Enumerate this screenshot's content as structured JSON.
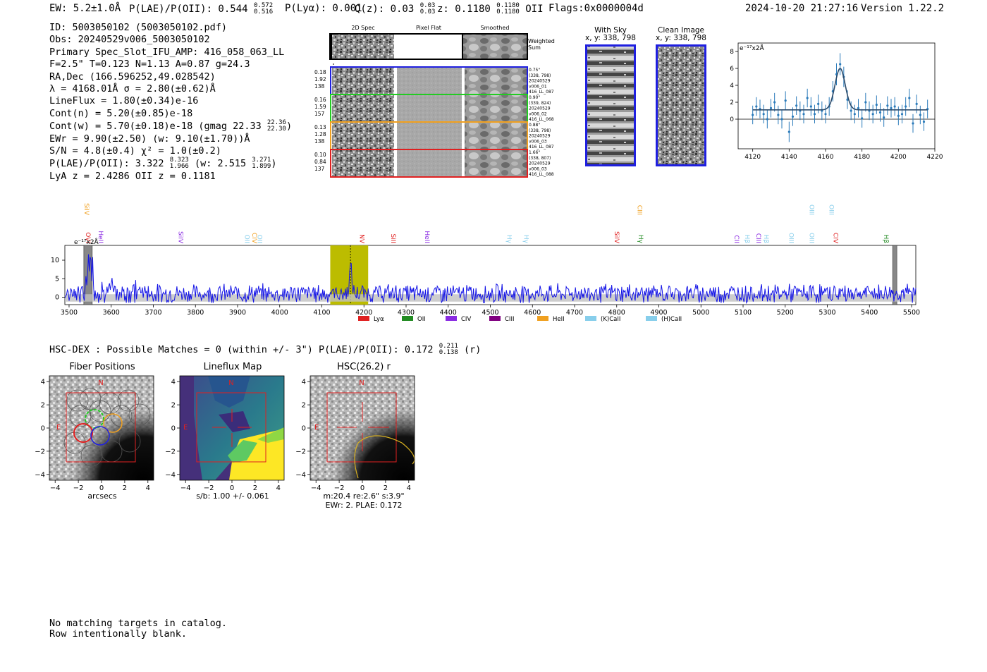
{
  "header": {
    "ew": "EW: 5.2±1.0Å",
    "plae_label": "P(LAE)/P(OII): 0.544",
    "plae_hi": "0.572",
    "plae_lo": "0.516",
    "plya": "P(Lyα): 0.001",
    "qz_label": "Q(z): 0.03",
    "qz_hi": "0.03",
    "qz_lo": "0.03",
    "z_label": "z: 0.1180",
    "z_hi": "0.1180",
    "z_lo": "0.1180",
    "z_line": "OII",
    "flags": "Flags:0x0000004d",
    "timestamp": "2024-10-20 21:27:16",
    "version": "Version 1.22.2"
  },
  "info": {
    "id": "ID: 5003050102 (5003050102.pdf)",
    "obs": "Obs: 20240529v006_5003050102",
    "primary": "Primary Spec_Slot_IFU_AMP: 416_058_063_LL",
    "params": "F=2.5\"  T=0.123  N=1.13  A=0.87  g=24.3",
    "radec": "RA,Dec (166.596252,49.028542)",
    "lambda_sigma": "λ = 4168.01Å  σ = 2.80(±0.62)Å",
    "lineflux": "LineFlux = 1.80(±0.34)e-16",
    "contn": "Cont(n) = 5.20(±0.85)e-18",
    "contw_pre": "Cont(w) = 5.70(±0.18)e-18 (gmag 22.33",
    "contw_hi": "22.36",
    "contw_lo": "22.30",
    "contw_post": ")",
    "ewr": "EWr = 9.90(±2.50) (w: 9.10(±1.70))Å",
    "sn": "S/N = 4.8(±0.4)  χ² = 1.0(±0.2)",
    "plae_pre": "P(LAE)/P(OII): 3.322",
    "plae_hi": "8.323",
    "plae_lo": "1.966",
    "plae_mid": "(w: 2.515",
    "plae_w_hi": "3.271",
    "plae_w_lo": "1.899",
    "plae_post": ")",
    "lya_z": "LyA z = 2.4286  OII z = 0.1181"
  },
  "cutouts": {
    "col_labels": [
      "2D Spec",
      "Pixel Flat",
      "Smoothed"
    ],
    "weighted_sum": [
      "Weighted",
      "Sum"
    ],
    "rows": [
      {
        "left": [
          "0.18",
          "1.92",
          "138"
        ],
        "right": [
          "0.75\"",
          "(338, 798)",
          "20240529",
          "v006_01",
          "416_LL_087"
        ],
        "color": "#1f1fe0"
      },
      {
        "left": [
          "0.16",
          "1.59",
          "157"
        ],
        "right": [
          "0.90\"",
          "(339, 824)",
          "20240529",
          "v006_02",
          "416_LL_068"
        ],
        "color": "#22cc22"
      },
      {
        "left": [
          "0.13",
          "1.28",
          "138"
        ],
        "right": [
          "0.88\"",
          "(338, 798)",
          "20240529",
          "v006_03",
          "416_LL_087"
        ],
        "color": "#f0a020"
      },
      {
        "left": [
          "0.10",
          "0.84",
          "137"
        ],
        "right": [
          "1.66\"",
          "(338, 807)",
          "20240529",
          "v006_03",
          "416_LL_088"
        ],
        "color": "#e02020"
      }
    ]
  },
  "sky": {
    "with_sky": "With Sky",
    "with_sky_xy": "x, y: 338, 798",
    "clean": "Clean Image",
    "clean_xy": "x, y: 338, 798"
  },
  "zoom_chart": {
    "ylabel": "e⁻¹⁷x2Å",
    "xticks": [
      "4120",
      "4140",
      "4160",
      "4180",
      "4200",
      "4220"
    ],
    "yticks": [
      "0",
      "2",
      "4",
      "6",
      "8"
    ]
  },
  "full_spectrum": {
    "ylabel": "e⁻¹⁷x2Å",
    "xticks": [
      "3500",
      "3600",
      "3700",
      "3800",
      "3900",
      "4000",
      "4100",
      "4200",
      "4300",
      "4400",
      "4500",
      "4600",
      "4700",
      "4800",
      "4900",
      "5000",
      "5100",
      "5200",
      "5300",
      "5400",
      "5500"
    ],
    "yticks": [
      "0",
      "5",
      "10"
    ],
    "line_labels": [
      {
        "text": "SiIV",
        "w": 3537,
        "row": 0,
        "color": "#f0a020"
      },
      {
        "text": "OVI",
        "w": 3540,
        "row": 1,
        "color": "#e02020"
      },
      {
        "text": "HeII",
        "w": 3570,
        "row": 1,
        "color": "#8a2be2"
      },
      {
        "text": "SiIV",
        "w": 3760,
        "row": 1,
        "color": "#8a2be2"
      },
      {
        "text": "OII",
        "w": 3918,
        "row": 1,
        "color": "#87ceeb"
      },
      {
        "text": "CIV",
        "w": 3935,
        "row": 1,
        "color": "#f0a020"
      },
      {
        "text": "OII",
        "w": 3948,
        "row": 1,
        "color": "#87ceeb"
      },
      {
        "text": "NV",
        "w": 4190,
        "row": 1,
        "color": "#e02020"
      },
      {
        "text": "SiII",
        "w": 4265,
        "row": 1,
        "color": "#e02020"
      },
      {
        "text": "HeII",
        "w": 4345,
        "row": 1,
        "color": "#8a2be2"
      },
      {
        "text": "Hγ",
        "w": 4540,
        "row": 1,
        "color": "#87ceeb"
      },
      {
        "text": "Hγ",
        "w": 4580,
        "row": 1,
        "color": "#87ceeb"
      },
      {
        "text": "SiIV",
        "w": 4795,
        "row": 1,
        "color": "#e02020"
      },
      {
        "text": "CIII",
        "w": 4850,
        "row": 0,
        "color": "#f0a020"
      },
      {
        "text": "Hγ",
        "w": 4852,
        "row": 1,
        "color": "#228b22"
      },
      {
        "text": "CII",
        "w": 5080,
        "row": 1,
        "color": "#8a2be2"
      },
      {
        "text": "Hβ",
        "w": 5105,
        "row": 1,
        "color": "#87ceeb"
      },
      {
        "text": "CIII",
        "w": 5132,
        "row": 1,
        "color": "#8a2be2"
      },
      {
        "text": "Hβ",
        "w": 5150,
        "row": 1,
        "color": "#87ceeb"
      },
      {
        "text": "OIII",
        "w": 5210,
        "row": 1,
        "color": "#87ceeb"
      },
      {
        "text": "OIII",
        "w": 5258,
        "row": 0,
        "color": "#87ceeb"
      },
      {
        "text": "OIII",
        "w": 5258,
        "row": 1,
        "color": "#87ceeb"
      },
      {
        "text": "OIII",
        "w": 5305,
        "row": 0,
        "color": "#87ceeb"
      },
      {
        "text": "CIV",
        "w": 5315,
        "row": 1,
        "color": "#e02020"
      },
      {
        "text": "Hβ",
        "w": 5435,
        "row": 1,
        "color": "#228b22"
      }
    ],
    "legend": [
      {
        "label": "Lyα",
        "color": "#e02020"
      },
      {
        "label": "OII",
        "color": "#228b22"
      },
      {
        "label": "CIV",
        "color": "#8a2be2"
      },
      {
        "label": "CIII",
        "color": "#800080"
      },
      {
        "label": "HeII",
        "color": "#f0a020"
      },
      {
        "label": "(K)CaII",
        "color": "#87ceeb"
      },
      {
        "label": "(H)CaII",
        "color": "#87ceeb"
      }
    ]
  },
  "hsc": {
    "text": "HSC-DEX : Possible Matches = 0 (within +/- 3\")  P(LAE)/P(OII): 0.172",
    "hi": "0.211",
    "lo": "0.138",
    "post": "(r)"
  },
  "panels": [
    {
      "title": "Fiber Positions",
      "caption": [
        "arcsecs"
      ]
    },
    {
      "title": "Lineflux Map",
      "caption": [
        "s/b: 1.00 +/- 0.061"
      ]
    },
    {
      "title": "HSC(26.2) r",
      "caption": [
        "m:20.4  re:2.6\"  s:3.9\"",
        "EWr: 2. PLAE: 0.172"
      ]
    }
  ],
  "panel_axis": {
    "ticks": [
      "−4",
      "−2",
      "0",
      "2",
      "4"
    ],
    "north": "N",
    "east": "E"
  },
  "footer": {
    "line1": "No matching targets in catalog.",
    "line2": "Row intentionally blank."
  },
  "chart_data": [
    {
      "type": "scatter",
      "title": "",
      "xlabel": "",
      "ylabel": "e⁻¹⁷x2Å",
      "xlim": [
        4112,
        4220
      ],
      "ylim": [
        -3.5,
        9
      ],
      "x": [
        4120,
        4122,
        4124,
        4126,
        4128,
        4130,
        4132,
        4134,
        4136,
        4138,
        4140,
        4142,
        4144,
        4146,
        4148,
        4150,
        4152,
        4154,
        4156,
        4158,
        4160,
        4162,
        4164,
        4166,
        4168,
        4170,
        4172,
        4174,
        4176,
        4178,
        4180,
        4182,
        4184,
        4186,
        4188,
        4190,
        4192,
        4194,
        4196,
        4198,
        4200,
        4202,
        4204,
        4206,
        4208,
        4210,
        4212,
        4214,
        4216
      ],
      "y": [
        0.5,
        1.5,
        1.2,
        0.6,
        0.0,
        1.3,
        2.0,
        0.5,
        0.0,
        2.2,
        -1.5,
        0.3,
        1.6,
        1.0,
        0.6,
        2.5,
        1.5,
        0.6,
        1.8,
        1.0,
        0.6,
        1.5,
        3.3,
        5.3,
        6.5,
        5.0,
        2.3,
        1.0,
        0.6,
        1.3,
        0.1,
        2.0,
        1.0,
        0.6,
        1.7,
        0.8,
        0.2,
        1.6,
        1.3,
        1.5,
        0.4,
        0.6,
        1.5,
        2.5,
        -0.5,
        1.8,
        0.5,
        -0.3,
        1.2
      ],
      "err": [
        1.1,
        1.1,
        1.1,
        1.1,
        1.1,
        1.1,
        1.1,
        1.1,
        1.1,
        1.1,
        1.2,
        1.1,
        1.1,
        1.1,
        1.1,
        1.1,
        1.1,
        1.1,
        1.1,
        1.1,
        1.1,
        1.1,
        1.2,
        1.3,
        1.3,
        1.2,
        1.1,
        1.1,
        1.1,
        1.1,
        1.1,
        1.1,
        1.1,
        1.1,
        1.1,
        1.1,
        1.1,
        1.1,
        1.1,
        1.1,
        1.1,
        1.1,
        1.1,
        1.1,
        1.1,
        1.1,
        1.1,
        1.1,
        1.1
      ],
      "fit": {
        "continuum": 1.1,
        "center": 4168.0,
        "amplitude": 4.9,
        "sigma": 2.8
      }
    },
    {
      "type": "line",
      "title": "",
      "xlabel": "",
      "ylabel": "e⁻¹⁷x2Å",
      "xlim": [
        3490,
        5510
      ],
      "ylim": [
        -2,
        14
      ],
      "series": [
        {
          "name": "spectrum",
          "note": "noisy continuum near 1 with narrow emission at 4168"
        }
      ],
      "highlight_range": [
        4120,
        4210
      ],
      "line_marker": 4168,
      "masked_ranges": [
        [
          3535,
          3555
        ],
        [
          5455,
          5465
        ]
      ]
    }
  ]
}
